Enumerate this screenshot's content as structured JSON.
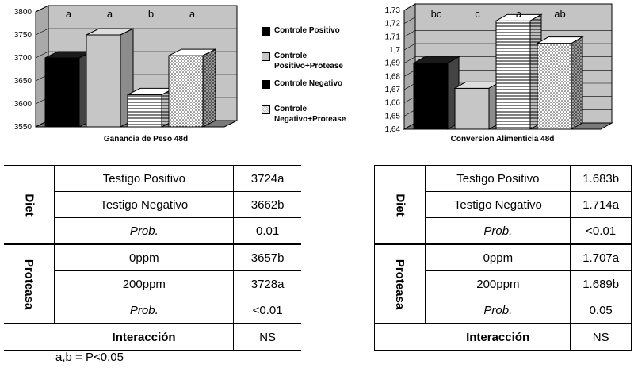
{
  "chart_data": [
    {
      "type": "bar",
      "title": "Ganancia de Peso 48d",
      "categories": [
        "Controle Positivo",
        "Controle Positivo+Protease",
        "Controle Negativo",
        "Controle Negativo+Protease"
      ],
      "values": [
        3700,
        3750,
        3620,
        3705
      ],
      "significance_labels": [
        "a",
        "a",
        "b",
        "a"
      ],
      "ylim": [
        3550,
        3800
      ],
      "yticks": [
        "3550",
        "3600",
        "3650",
        "3700",
        "3750",
        "3800"
      ],
      "grid": true,
      "legend": "right",
      "series_fills": [
        "black",
        "light-grey",
        "horizontal-stripes",
        "dotted"
      ]
    },
    {
      "type": "bar",
      "title": "Conversion Alimenticia 48d",
      "categories": [
        "Controle Positivo",
        "Controle Positivo+Protease",
        "Controle Negativo",
        "Controle Negativo+Protease"
      ],
      "values": [
        1.69,
        1.671,
        1.722,
        1.705
      ],
      "significance_labels": [
        "bc",
        "c",
        "a",
        "ab"
      ],
      "ylim": [
        1.64,
        1.73
      ],
      "yticks": [
        "1,64",
        "1,65",
        "1,66",
        "1,67",
        "1,68",
        "1,69",
        "1,7",
        "1,71",
        "1,72",
        "1,73"
      ],
      "grid": true,
      "legend": "none",
      "series_fills": [
        "black",
        "light-grey",
        "horizontal-stripes",
        "dotted"
      ]
    }
  ],
  "legend": [
    "Controle Positivo",
    "Controle Positivo+Protease",
    "Controle Negativo",
    "Controle Negativo+Protease"
  ],
  "colors": {
    "bar_black": "#000000",
    "bar_grey": "#c6c6c6",
    "wall": "#c4c4c4",
    "floor": "#7a7a7a"
  },
  "tables": [
    {
      "diet_label": "Diet",
      "protease_label": "Proteasa",
      "rows": [
        [
          "Testigo Positivo",
          "3724a"
        ],
        [
          "Testigo Negativo",
          "3662b"
        ],
        [
          "Prob.",
          "0.01"
        ],
        [
          "0ppm",
          "3657b"
        ],
        [
          "200ppm",
          "3728a"
        ],
        [
          "Prob.",
          "<0.01"
        ],
        [
          "Interacción",
          "NS"
        ]
      ]
    },
    {
      "diet_label": "Diet",
      "protease_label": "Proteasa",
      "rows": [
        [
          "Testigo Positivo",
          "1.683b"
        ],
        [
          "Testigo Negativo",
          "1.714a"
        ],
        [
          "Prob.",
          "<0.01"
        ],
        [
          "0ppm",
          "1.707a"
        ],
        [
          "200ppm",
          "1.689b"
        ],
        [
          "Prob.",
          "0.05"
        ],
        [
          "Interacción",
          "NS"
        ]
      ]
    }
  ],
  "footnote": "a,b = P<0,05"
}
